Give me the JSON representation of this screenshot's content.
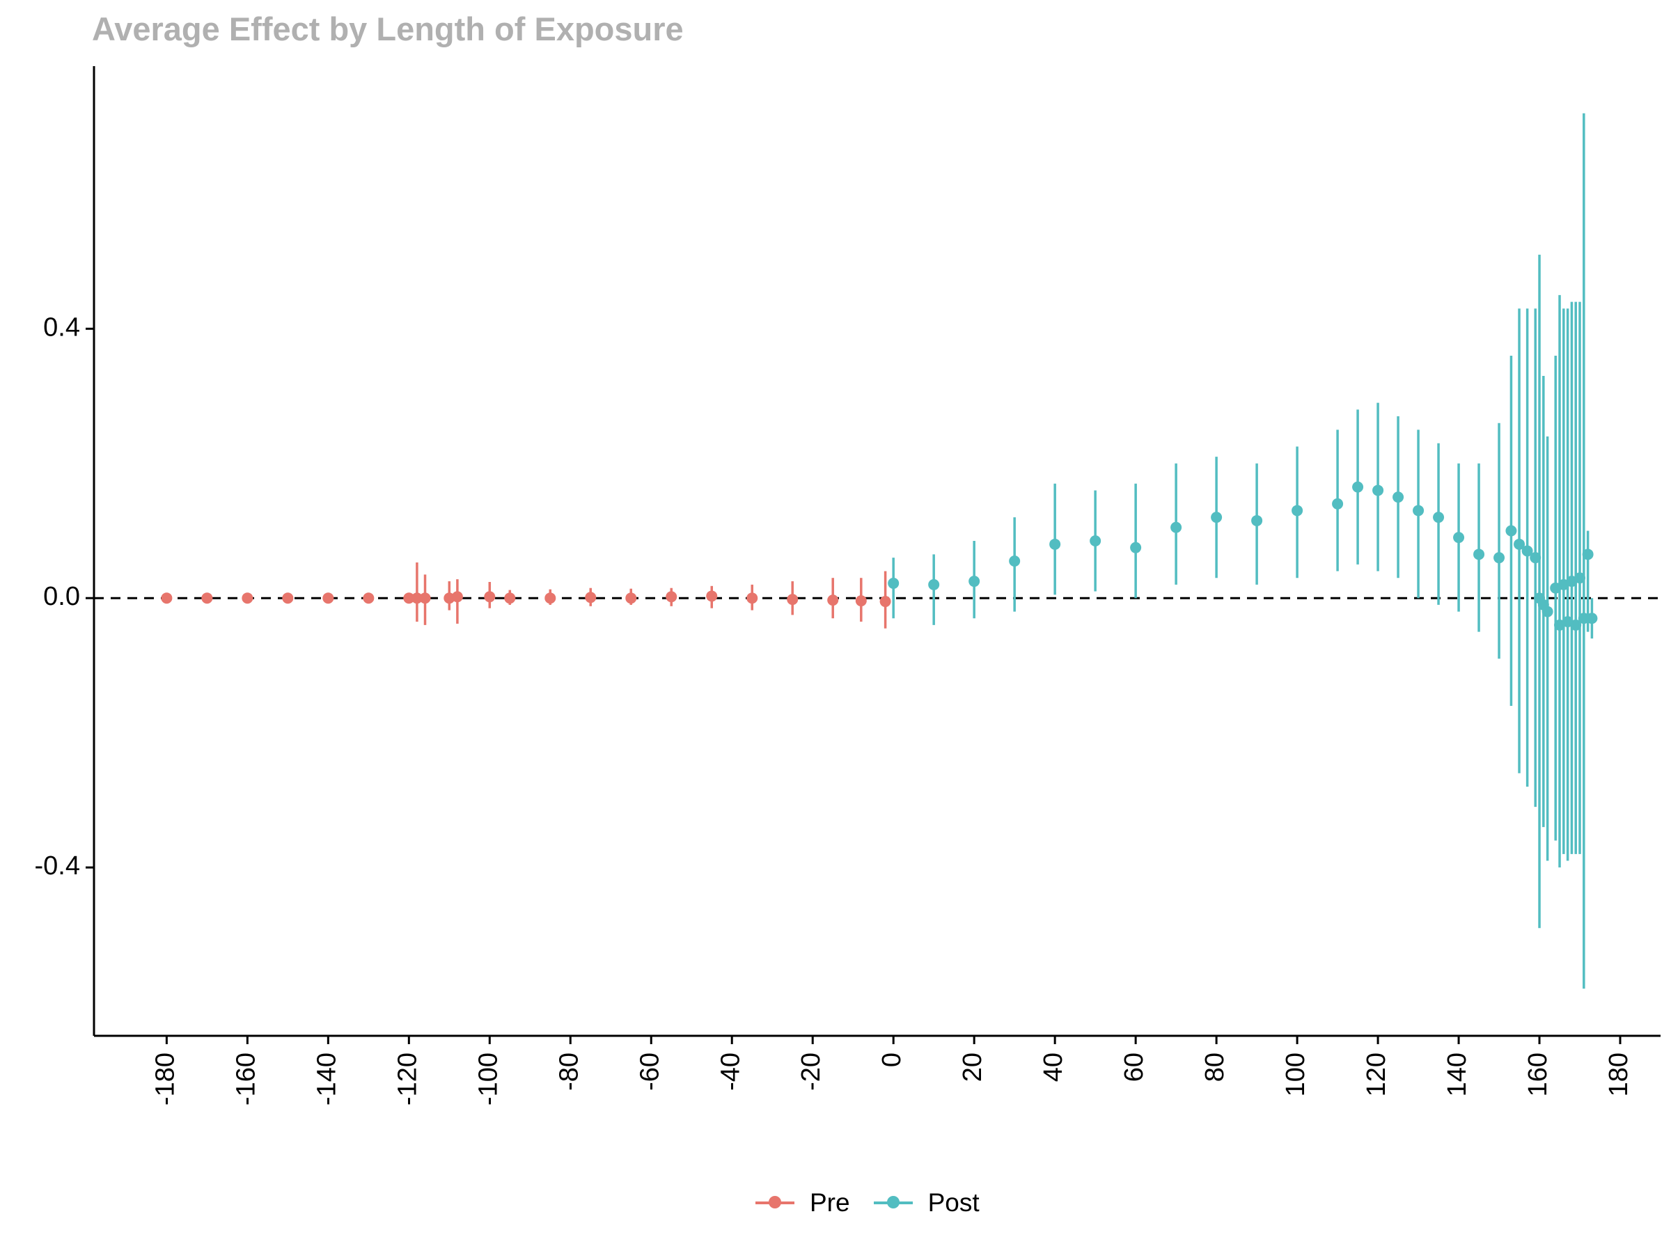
{
  "chart_data": {
    "type": "scatter",
    "title": "Average Effect by Length of Exposure",
    "xlabel": "",
    "ylabel": "",
    "xlim": [
      -198,
      190
    ],
    "ylim": [
      -0.65,
      0.79
    ],
    "x_ticks": [
      -180,
      -160,
      -140,
      -120,
      -100,
      -80,
      -60,
      -40,
      -20,
      0,
      20,
      40,
      60,
      80,
      100,
      120,
      140,
      160,
      180
    ],
    "y_ticks": [
      -0.4,
      0.0,
      0.4
    ],
    "y_tick_labels": [
      "-0.4",
      "0.0",
      "0.4"
    ],
    "reference_line": {
      "y": 0.0,
      "style": "dashed"
    },
    "grid": false,
    "legend_position": "bottom",
    "series": [
      {
        "name": "Pre",
        "color": "#E7756C",
        "points": [
          {
            "x": -180,
            "y": 0.0,
            "lo": -0.002,
            "hi": 0.002
          },
          {
            "x": -170,
            "y": 0.0,
            "lo": -0.003,
            "hi": 0.003
          },
          {
            "x": -160,
            "y": 0.0,
            "lo": -0.003,
            "hi": 0.003
          },
          {
            "x": -150,
            "y": 0.0,
            "lo": -0.003,
            "hi": 0.003
          },
          {
            "x": -140,
            "y": 0.0,
            "lo": -0.004,
            "hi": 0.004
          },
          {
            "x": -130,
            "y": 0.0,
            "lo": -0.004,
            "hi": 0.004
          },
          {
            "x": -120,
            "y": 0.0,
            "lo": -0.005,
            "hi": 0.005
          },
          {
            "x": -118,
            "y": 0.0,
            "lo": -0.035,
            "hi": 0.053
          },
          {
            "x": -116,
            "y": 0.0,
            "lo": -0.04,
            "hi": 0.035
          },
          {
            "x": -110,
            "y": 0.0,
            "lo": -0.018,
            "hi": 0.025
          },
          {
            "x": -108,
            "y": 0.002,
            "lo": -0.038,
            "hi": 0.028
          },
          {
            "x": -100,
            "y": 0.002,
            "lo": -0.015,
            "hi": 0.024
          },
          {
            "x": -95,
            "y": 0.0,
            "lo": -0.01,
            "hi": 0.012
          },
          {
            "x": -85,
            "y": 0.0,
            "lo": -0.01,
            "hi": 0.013
          },
          {
            "x": -75,
            "y": 0.001,
            "lo": -0.012,
            "hi": 0.015
          },
          {
            "x": -65,
            "y": 0.0,
            "lo": -0.01,
            "hi": 0.014
          },
          {
            "x": -55,
            "y": 0.002,
            "lo": -0.012,
            "hi": 0.015
          },
          {
            "x": -45,
            "y": 0.003,
            "lo": -0.015,
            "hi": 0.018
          },
          {
            "x": -35,
            "y": 0.0,
            "lo": -0.018,
            "hi": 0.02
          },
          {
            "x": -25,
            "y": -0.002,
            "lo": -0.025,
            "hi": 0.025
          },
          {
            "x": -15,
            "y": -0.003,
            "lo": -0.03,
            "hi": 0.03
          },
          {
            "x": -8,
            "y": -0.004,
            "lo": -0.035,
            "hi": 0.03
          },
          {
            "x": -2,
            "y": -0.005,
            "lo": -0.045,
            "hi": 0.04
          }
        ]
      },
      {
        "name": "Post",
        "color": "#52BDC1",
        "points": [
          {
            "x": 0,
            "y": 0.022,
            "lo": -0.03,
            "hi": 0.06
          },
          {
            "x": 10,
            "y": 0.02,
            "lo": -0.04,
            "hi": 0.065
          },
          {
            "x": 20,
            "y": 0.025,
            "lo": -0.03,
            "hi": 0.085
          },
          {
            "x": 30,
            "y": 0.055,
            "lo": -0.02,
            "hi": 0.12
          },
          {
            "x": 40,
            "y": 0.08,
            "lo": 0.005,
            "hi": 0.17
          },
          {
            "x": 50,
            "y": 0.085,
            "lo": 0.01,
            "hi": 0.16
          },
          {
            "x": 60,
            "y": 0.075,
            "lo": 0.0,
            "hi": 0.17
          },
          {
            "x": 70,
            "y": 0.105,
            "lo": 0.02,
            "hi": 0.2
          },
          {
            "x": 80,
            "y": 0.12,
            "lo": 0.03,
            "hi": 0.21
          },
          {
            "x": 90,
            "y": 0.115,
            "lo": 0.02,
            "hi": 0.2
          },
          {
            "x": 100,
            "y": 0.13,
            "lo": 0.03,
            "hi": 0.225
          },
          {
            "x": 110,
            "y": 0.14,
            "lo": 0.04,
            "hi": 0.25
          },
          {
            "x": 115,
            "y": 0.165,
            "lo": 0.05,
            "hi": 0.28
          },
          {
            "x": 120,
            "y": 0.16,
            "lo": 0.04,
            "hi": 0.29
          },
          {
            "x": 125,
            "y": 0.15,
            "lo": 0.03,
            "hi": 0.27
          },
          {
            "x": 130,
            "y": 0.13,
            "lo": 0.0,
            "hi": 0.25
          },
          {
            "x": 135,
            "y": 0.12,
            "lo": -0.01,
            "hi": 0.23
          },
          {
            "x": 140,
            "y": 0.09,
            "lo": -0.02,
            "hi": 0.2
          },
          {
            "x": 145,
            "y": 0.065,
            "lo": -0.05,
            "hi": 0.2
          },
          {
            "x": 150,
            "y": 0.06,
            "lo": -0.09,
            "hi": 0.26
          },
          {
            "x": 153,
            "y": 0.1,
            "lo": -0.16,
            "hi": 0.36
          },
          {
            "x": 155,
            "y": 0.08,
            "lo": -0.26,
            "hi": 0.43
          },
          {
            "x": 157,
            "y": 0.07,
            "lo": -0.28,
            "hi": 0.43
          },
          {
            "x": 159,
            "y": 0.06,
            "lo": -0.31,
            "hi": 0.43
          },
          {
            "x": 160,
            "y": 0.0,
            "lo": -0.49,
            "hi": 0.51
          },
          {
            "x": 161,
            "y": -0.01,
            "lo": -0.34,
            "hi": 0.33
          },
          {
            "x": 162,
            "y": -0.02,
            "lo": -0.39,
            "hi": 0.24
          },
          {
            "x": 164,
            "y": 0.015,
            "lo": -0.36,
            "hi": 0.36
          },
          {
            "x": 165,
            "y": -0.04,
            "lo": -0.4,
            "hi": 0.45
          },
          {
            "x": 166,
            "y": 0.02,
            "lo": -0.38,
            "hi": 0.43
          },
          {
            "x": 167,
            "y": -0.035,
            "lo": -0.39,
            "hi": 0.43
          },
          {
            "x": 168,
            "y": 0.025,
            "lo": -0.38,
            "hi": 0.44
          },
          {
            "x": 169,
            "y": -0.04,
            "lo": -0.38,
            "hi": 0.44
          },
          {
            "x": 170,
            "y": 0.03,
            "lo": -0.38,
            "hi": 0.44
          },
          {
            "x": 171,
            "y": -0.03,
            "lo": -0.58,
            "hi": 0.72
          },
          {
            "x": 172,
            "y": 0.065,
            "lo": -0.05,
            "hi": 0.1
          },
          {
            "x": 173,
            "y": -0.03,
            "lo": -0.06,
            "hi": 0.0
          }
        ]
      }
    ]
  }
}
